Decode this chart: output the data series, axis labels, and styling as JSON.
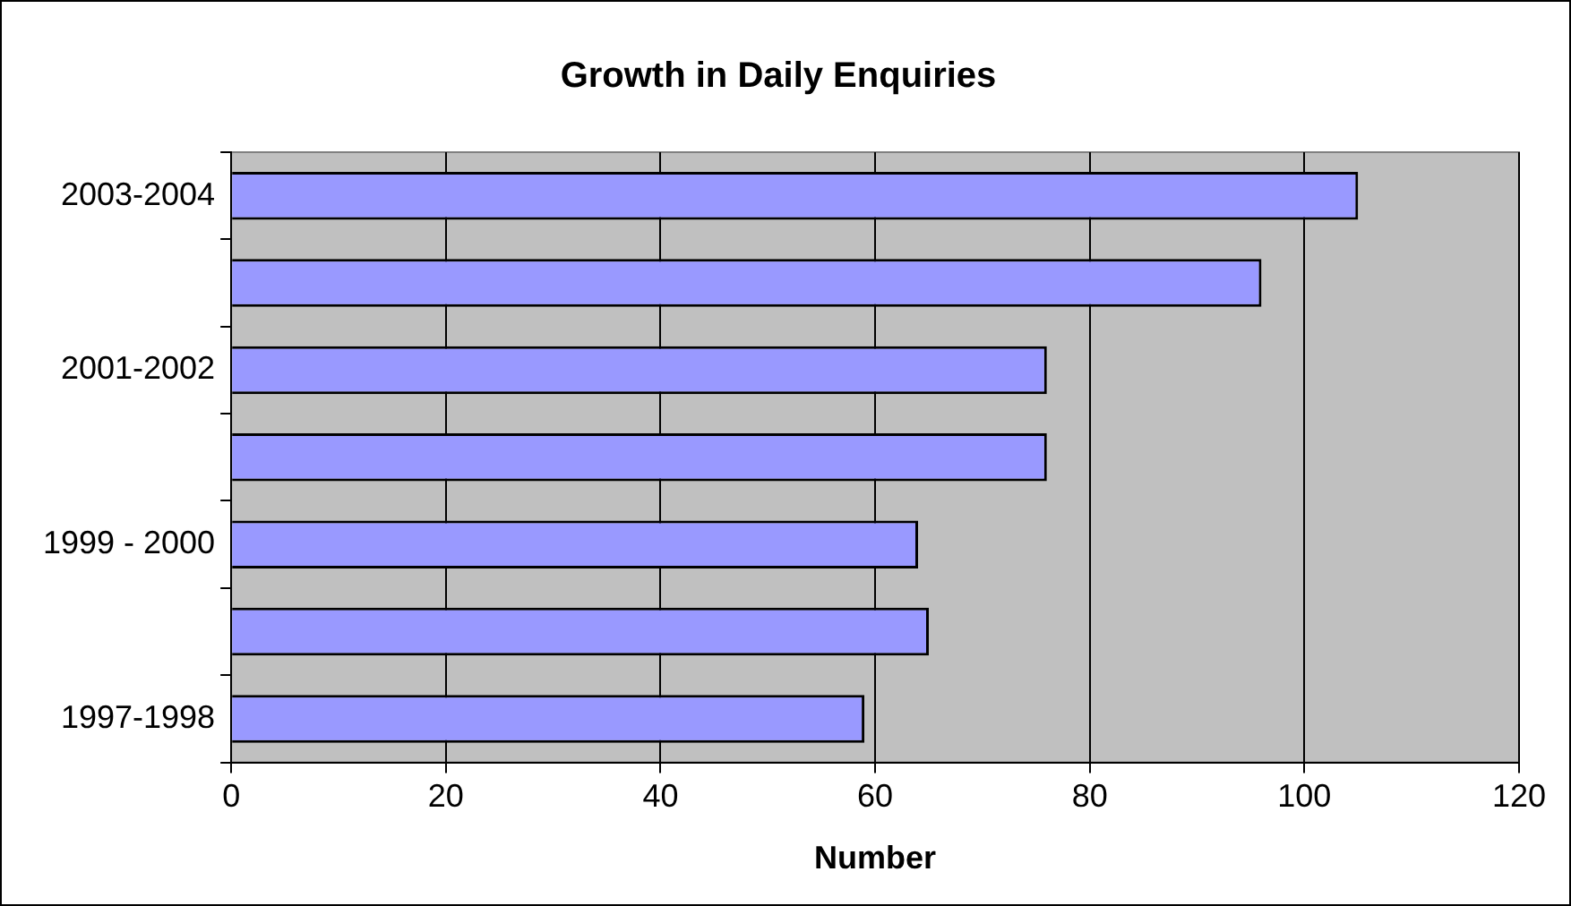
{
  "chart_data": {
    "type": "bar",
    "orientation": "horizontal",
    "title": "Growth in Daily Enquiries",
    "xlabel": "Number",
    "categories": [
      "2003-2004",
      null,
      "2001-2002",
      null,
      "1999 - 2000",
      null,
      "1997-1998"
    ],
    "values": [
      105,
      96,
      76,
      76,
      64,
      65,
      59
    ],
    "color": "#9999ff",
    "xlim": [
      0,
      120
    ],
    "xticks": [
      0,
      20,
      40,
      60,
      80,
      100,
      120
    ],
    "grid": "x",
    "legend": false
  }
}
